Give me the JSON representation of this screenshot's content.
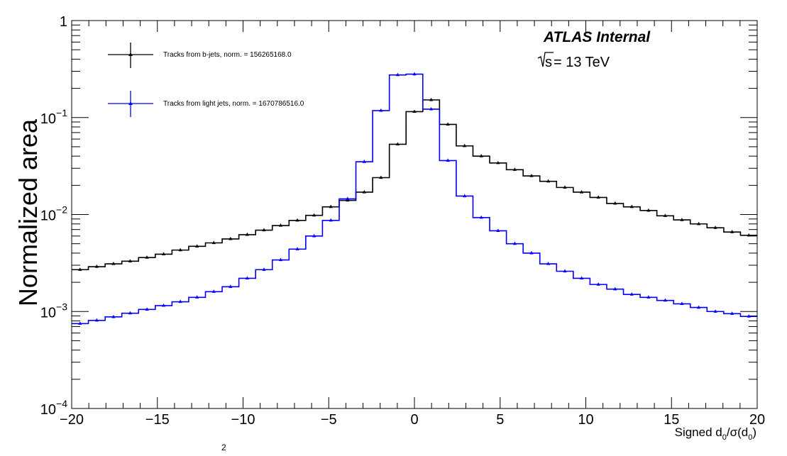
{
  "chart_data": {
    "type": "line",
    "title": "",
    "annotations": {
      "experiment": "ATLAS Internal",
      "energy_prefix": "s",
      "energy_rest": " = 13 TeV"
    },
    "xlabel": {
      "main": "Signed d",
      "sub1": "0",
      "mid": "/σ(d",
      "sub2": "0",
      "end": ")"
    },
    "ylabel": "Normalized area",
    "stray_superscript": "2",
    "xlim": [
      -20,
      20
    ],
    "ylim": [
      0.0001,
      1
    ],
    "yscale": "log",
    "grid": false,
    "legend_position": "top-left",
    "x_tick_labels": [
      "−20",
      "−15",
      "−10",
      "−5",
      "0",
      "5",
      "10",
      "15",
      "20"
    ],
    "y_tick_labels": [
      {
        "base": "10",
        "exp": "−4"
      },
      {
        "base": "10",
        "exp": "−3"
      },
      {
        "base": "10",
        "exp": "−2"
      },
      {
        "base": "10",
        "exp": "−1"
      },
      {
        "base": "1",
        "exp": ""
      }
    ],
    "bin_edges": [
      -20,
      -19,
      -18,
      -17,
      -16,
      -15,
      -14,
      -13,
      -12,
      -11,
      -10,
      -9,
      -8,
      -7,
      -6,
      -5,
      -4,
      -3,
      -2,
      -1,
      0,
      1,
      2,
      3,
      4,
      5,
      6,
      7,
      8,
      9,
      10,
      11,
      12,
      13,
      14,
      15,
      16,
      17,
      18,
      19,
      20
    ],
    "series": [
      {
        "name": "Tracks from b-jets, norm. = 156265168.0",
        "color": "#000000",
        "values": [
          0.0027,
          0.0029,
          0.0031,
          0.0033,
          0.0036,
          0.0039,
          0.0043,
          0.0047,
          0.0051,
          0.0056,
          0.0062,
          0.0069,
          0.0077,
          0.0087,
          0.0098,
          0.012,
          0.014,
          0.017,
          0.024,
          0.053,
          0.115,
          0.152,
          0.085,
          0.051,
          0.04,
          0.034,
          0.029,
          0.025,
          0.022,
          0.019,
          0.017,
          0.015,
          0.013,
          0.012,
          0.011,
          0.0097,
          0.0088,
          0.008,
          0.0073,
          0.0066,
          0.0061
        ]
      },
      {
        "name": "Tracks from light jets, norm. = 1670786516.0",
        "color": "#0000ff",
        "values": [
          0.00075,
          0.00081,
          0.00088,
          0.00096,
          0.00105,
          0.00115,
          0.00126,
          0.0014,
          0.0016,
          0.0018,
          0.0022,
          0.0027,
          0.0034,
          0.0044,
          0.006,
          0.0087,
          0.0145,
          0.035,
          0.118,
          0.275,
          0.28,
          0.122,
          0.036,
          0.0155,
          0.0093,
          0.0068,
          0.005,
          0.004,
          0.0031,
          0.0026,
          0.0022,
          0.0019,
          0.0017,
          0.0015,
          0.0014,
          0.0013,
          0.0012,
          0.0011,
          0.001,
          0.00095,
          0.00089
        ]
      }
    ]
  }
}
